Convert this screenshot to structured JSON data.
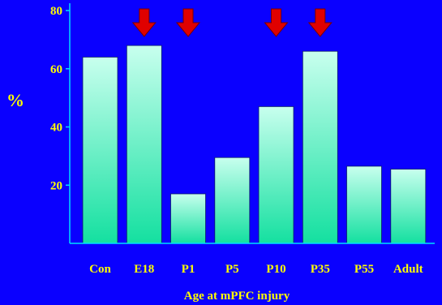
{
  "chart_data": {
    "type": "bar",
    "title": "",
    "xlabel": "Age at mPFC injury",
    "ylabel": "%",
    "ylim": [
      0,
      80
    ],
    "yticks": [
      20,
      40,
      60,
      80
    ],
    "categories": [
      "Con",
      "E18",
      "P1",
      "P5",
      "P10",
      "P35",
      "P55",
      "Adult"
    ],
    "values": [
      64,
      68,
      17,
      29.5,
      47,
      66,
      26.5,
      25.5
    ],
    "marked_categories": [
      "E18",
      "P1",
      "P10",
      "P35"
    ],
    "grid": false,
    "legend": "none"
  },
  "colors": {
    "background": "#0a00ff",
    "axis": "#00e0ff",
    "text": "#ffff00",
    "bar_top": "#c8ffee",
    "bar_bottom": "#14e0a0",
    "arrow": "#e00000",
    "arrow_stroke": "#7a0000"
  },
  "icons": {
    "marker": "down-arrow-icon"
  }
}
